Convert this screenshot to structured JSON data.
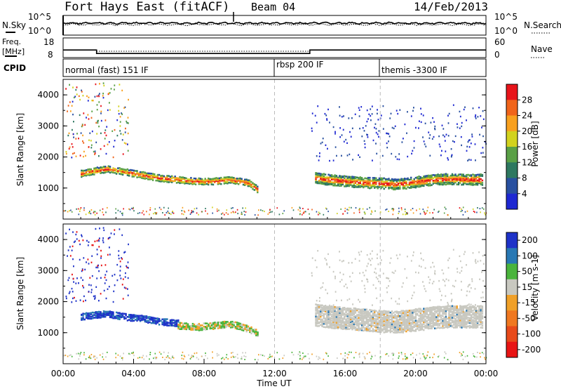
{
  "header": {
    "radar": "Fort Hays East (fitACF)",
    "beam": "Beam 04",
    "date": "14/Feb/2013"
  },
  "noise_panel": {
    "left_label": "N.Sky",
    "right_label": "N.Search",
    "left_ticks": [
      "10^5",
      "10^0"
    ],
    "right_ticks": [
      "10^5",
      "10^0"
    ]
  },
  "freq_panel": {
    "left_label_1": "Freq.",
    "left_label_2": "[MHz]",
    "right_label": "Nave",
    "left_ticks": [
      "18",
      "8"
    ],
    "right_ticks": [
      "60",
      "0"
    ]
  },
  "cpid_panel": {
    "label": "CPID",
    "modes": [
      {
        "name": "normal (fast) 151 IF",
        "start_hour": 0
      },
      {
        "name": "rbsp 200 IF",
        "start_hour": 12
      },
      {
        "name": "themis -3300 IF",
        "start_hour": 18
      }
    ]
  },
  "axes": {
    "x_label": "Time UT",
    "x_ticks": [
      "00:00",
      "04:00",
      "08:00",
      "12:00",
      "16:00",
      "20:00",
      "00:00"
    ],
    "y_label": "Slant Range [km]",
    "y_ticks": [
      "4000",
      "3000",
      "2000",
      "1000"
    ]
  },
  "power_scale": {
    "title": "Power [dB]",
    "ticks": [
      "28",
      "24",
      "20",
      "16",
      "12",
      "8",
      "4"
    ],
    "colors": [
      "#e8141a",
      "#f0641a",
      "#f8a01e",
      "#d2d21e",
      "#5aa046",
      "#2e7860",
      "#2850a0",
      "#1e28d2"
    ]
  },
  "velocity_scale": {
    "title": "Velocity [m s-1]",
    "ticks": [
      "200",
      "100",
      "50",
      "15",
      "-15",
      "-50",
      "-100",
      "-200"
    ],
    "colors": [
      "#1e32c8",
      "#2878b4",
      "#4ab43c",
      "#c8c8c0",
      "#f0a028",
      "#f07820",
      "#e84a1a",
      "#e81414"
    ]
  },
  "chart_data": {
    "type": "heatmap",
    "x_unit": "hour UT",
    "xlim": [
      0,
      24
    ],
    "ylim": [
      0,
      4500
    ],
    "freq_steps": [
      {
        "start": 0,
        "end": 1.9,
        "freq_mhz": 12.5
      },
      {
        "start": 1.9,
        "end": 14.0,
        "freq_mhz": 10.4
      },
      {
        "start": 14.0,
        "end": 24,
        "freq_mhz": 12.5
      }
    ],
    "power_bands": [
      {
        "x": [
          1.0,
          1.5,
          2.5,
          3.5,
          4.5,
          5.5,
          6.5,
          7.5,
          8.5,
          9.5,
          10.5,
          11.0
        ],
        "y": [
          1500,
          1560,
          1650,
          1550,
          1450,
          1350,
          1300,
          1250,
          1250,
          1300,
          1200,
          1000
        ],
        "width": 200,
        "level": 20
      },
      {
        "x": [
          14.3,
          15,
          16,
          17,
          18,
          19,
          20,
          21,
          22,
          23,
          23.8
        ],
        "y": [
          1350,
          1300,
          1250,
          1200,
          1180,
          1150,
          1220,
          1300,
          1320,
          1300,
          1300
        ],
        "width": 320,
        "level": 18
      }
    ],
    "velocity_bands": [
      {
        "x": [
          1.0,
          1.5,
          2.5,
          3.5,
          4.5,
          5.5,
          6.5
        ],
        "y": [
          1550,
          1600,
          1650,
          1550,
          1500,
          1400,
          1350
        ],
        "width": 220,
        "velocity": 150
      },
      {
        "x": [
          6.5,
          7.5,
          8.5,
          9.5,
          10.5,
          11.0
        ],
        "y": [
          1250,
          1200,
          1250,
          1300,
          1150,
          1000
        ],
        "width": 180,
        "velocity": 20
      },
      {
        "x": [
          14.3,
          15,
          16,
          17,
          18,
          19,
          20,
          21,
          22,
          23,
          23.8
        ],
        "y": [
          1600,
          1550,
          1500,
          1450,
          1400,
          1380,
          1450,
          1520,
          1560,
          1550,
          1550
        ],
        "width": 700,
        "velocity": 0
      }
    ]
  }
}
